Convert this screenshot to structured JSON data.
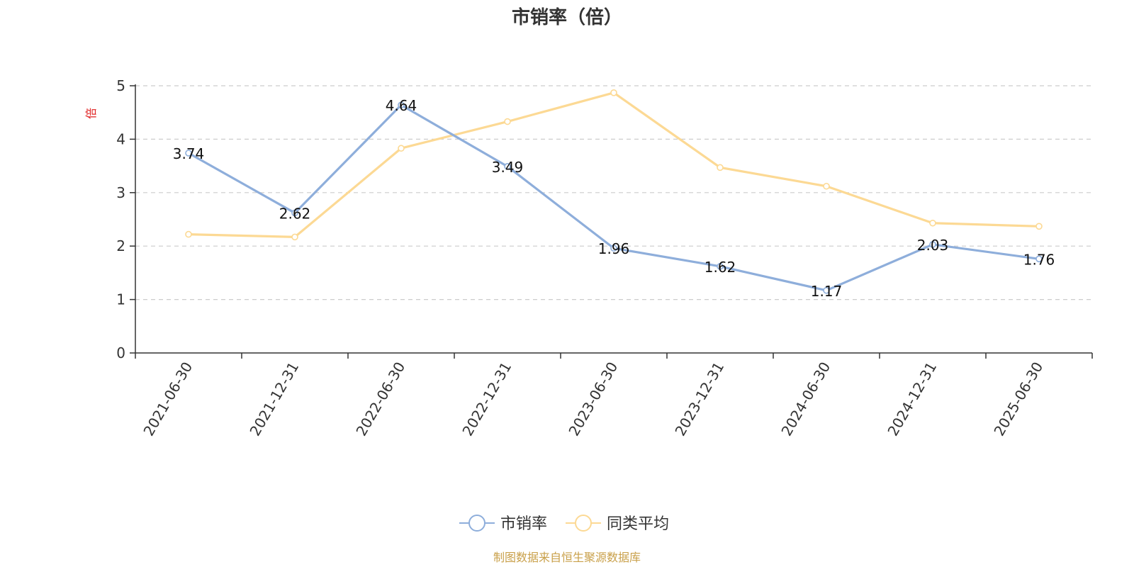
{
  "chart_data": {
    "type": "line",
    "title": "市销率（倍）",
    "ylabel": "倍",
    "ylim": [
      0,
      5
    ],
    "yticks": [
      0,
      1,
      2,
      3,
      4,
      5
    ],
    "grid": true,
    "legend_position": "bottom-center",
    "x": [
      "2021-06-30",
      "2021-12-31",
      "2022-06-30",
      "2022-12-31",
      "2023-06-30",
      "2023-12-31",
      "2024-06-30",
      "2024-12-31",
      "2025-06-30"
    ],
    "series": [
      {
        "name": "市销率",
        "color": "#8eaedb",
        "values": [
          3.74,
          2.62,
          4.64,
          3.49,
          1.96,
          1.62,
          1.17,
          2.03,
          1.76
        ],
        "labels": [
          "3.74",
          "2.62",
          "4.64",
          "3.49",
          "1.96",
          "1.62",
          "1.17",
          "2.03",
          "1.76"
        ]
      },
      {
        "name": "同类平均",
        "color": "#fcd994",
        "values": [
          2.22,
          2.17,
          3.83,
          4.33,
          4.87,
          3.47,
          3.12,
          2.43,
          2.37
        ]
      }
    ],
    "source": "制图数据来自恒生聚源数据库"
  }
}
